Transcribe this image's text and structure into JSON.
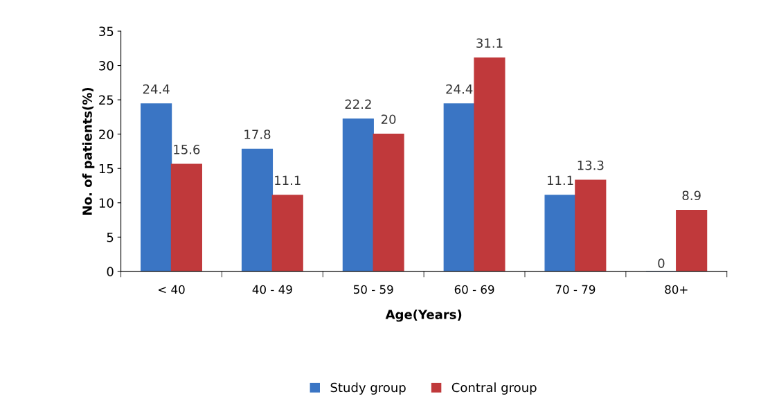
{
  "chart_data": {
    "type": "bar",
    "xlabel": "Age(Years)",
    "ylabel": "No. of patients(%)",
    "categories": [
      "< 40",
      "40 - 49",
      "50 - 59",
      "60 - 69",
      "70 - 79",
      "80+"
    ],
    "series": [
      {
        "name": "Study group",
        "color": "#3a75c4",
        "values": [
          24.4,
          17.8,
          22.2,
          24.4,
          11.1,
          0
        ]
      },
      {
        "name": "Contral group",
        "color": "#c0393b",
        "values": [
          15.6,
          11.1,
          20,
          31.1,
          13.3,
          8.9
        ]
      }
    ],
    "ylim": [
      0,
      35
    ],
    "yticks": [
      0,
      5,
      10,
      15,
      20,
      25,
      30,
      35
    ],
    "data_labels": true,
    "grid": false,
    "legend": "bottom"
  }
}
